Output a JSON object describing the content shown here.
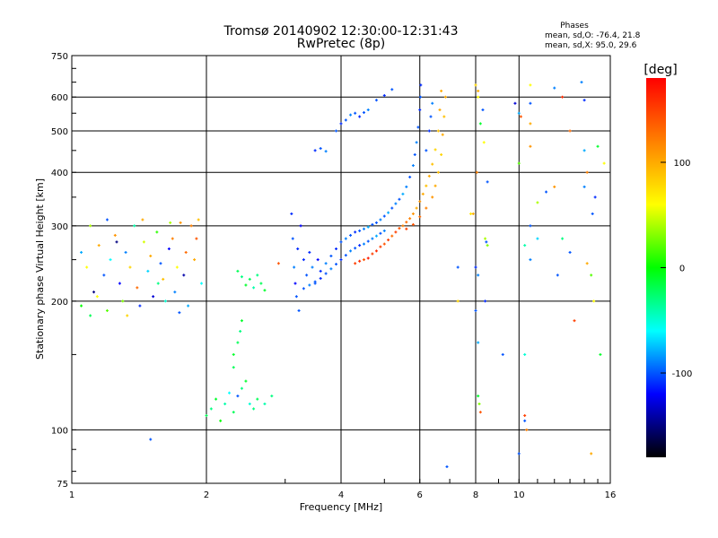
{
  "chart_data": {
    "type": "scatter",
    "title": "Tromsø 20140902 12:30:00-12:31:43",
    "subtitle": "RwPretec (8p)",
    "stats": {
      "title": "Phases",
      "line_o": "mean, sd,O: -76.4, 21.8",
      "line_x": "mean, sd,X:  95.0, 29.6"
    },
    "xlabel": "Frequency [MHz]",
    "ylabel": "Stationary phase Virtual Height [km]",
    "x_scale": "log",
    "y_scale": "log",
    "xlim": [
      1,
      16
    ],
    "ylim": [
      75,
      750
    ],
    "x_ticks": [
      1,
      2,
      4,
      6,
      8,
      10,
      16
    ],
    "x_ticklabels": [
      "1",
      "2",
      "4",
      "6",
      "8",
      "10",
      "16"
    ],
    "y_ticks": [
      75,
      100,
      200,
      300,
      400,
      500,
      600,
      750
    ],
    "y_ticklabels": [
      "75",
      "100",
      "200",
      "300",
      "400",
      "500",
      "600",
      "750"
    ],
    "grid": true,
    "colorbar": {
      "label": "[deg]",
      "min": -180,
      "max": 180,
      "ticks": [
        100,
        0,
        -100
      ],
      "ticklabels": [
        "100",
        "0",
        "-100"
      ],
      "colors": [
        "#ff0000",
        "#ff8000",
        "#ffff00",
        "#00ff00",
        "#00ffff",
        "#0000ff",
        "#000000"
      ]
    },
    "points": [
      [
        1.05,
        260,
        -80
      ],
      [
        1.08,
        240,
        60
      ],
      [
        1.1,
        300,
        40
      ],
      [
        1.12,
        210,
        -150
      ],
      [
        1.15,
        270,
        100
      ],
      [
        1.18,
        230,
        -100
      ],
      [
        1.2,
        190,
        20
      ],
      [
        1.22,
        250,
        -60
      ],
      [
        1.25,
        285,
        110
      ],
      [
        1.28,
        220,
        -120
      ],
      [
        1.3,
        200,
        30
      ],
      [
        1.32,
        260,
        -90
      ],
      [
        1.35,
        240,
        80
      ],
      [
        1.38,
        300,
        -40
      ],
      [
        1.4,
        215,
        130
      ],
      [
        1.42,
        195,
        -110
      ],
      [
        1.45,
        275,
        50
      ],
      [
        1.48,
        235,
        -70
      ],
      [
        1.5,
        255,
        100
      ],
      [
        1.52,
        205,
        -130
      ],
      [
        1.55,
        290,
        10
      ],
      [
        1.58,
        245,
        -100
      ],
      [
        1.6,
        225,
        90
      ],
      [
        1.62,
        200,
        -50
      ],
      [
        1.65,
        265,
        -120
      ],
      [
        1.68,
        280,
        120
      ],
      [
        1.7,
        210,
        -90
      ],
      [
        1.72,
        240,
        60
      ],
      [
        1.75,
        305,
        110
      ],
      [
        1.78,
        230,
        -140
      ],
      [
        1.8,
        260,
        130
      ],
      [
        1.82,
        195,
        -80
      ],
      [
        1.85,
        300,
        120
      ],
      [
        1.88,
        250,
        100
      ],
      [
        1.9,
        280,
        140
      ],
      [
        1.92,
        310,
        90
      ],
      [
        1.95,
        220,
        -60
      ],
      [
        1.05,
        195,
        0
      ],
      [
        1.1,
        185,
        -20
      ],
      [
        1.14,
        205,
        60
      ],
      [
        1.2,
        310,
        -100
      ],
      [
        1.26,
        275,
        -150
      ],
      [
        1.33,
        185,
        80
      ],
      [
        1.44,
        310,
        100
      ],
      [
        1.56,
        220,
        -30
      ],
      [
        1.66,
        305,
        40
      ],
      [
        1.74,
        188,
        -100
      ],
      [
        2.0,
        108,
        -20
      ],
      [
        2.05,
        112,
        -30
      ],
      [
        2.1,
        118,
        -10
      ],
      [
        2.15,
        105,
        0
      ],
      [
        2.2,
        115,
        -40
      ],
      [
        2.25,
        122,
        -60
      ],
      [
        2.3,
        110,
        -20
      ],
      [
        2.35,
        120,
        -100
      ],
      [
        2.4,
        125,
        -30
      ],
      [
        2.45,
        130,
        -10
      ],
      [
        2.5,
        115,
        -50
      ],
      [
        2.55,
        112,
        -30
      ],
      [
        2.6,
        118,
        -20
      ],
      [
        2.7,
        115,
        -40
      ],
      [
        2.8,
        120,
        -30
      ],
      [
        2.3,
        150,
        -10
      ],
      [
        2.35,
        160,
        -20
      ],
      [
        2.38,
        170,
        -30
      ],
      [
        2.4,
        180,
        -10
      ],
      [
        2.3,
        140,
        -20
      ],
      [
        2.35,
        235,
        -20
      ],
      [
        2.4,
        228,
        -30
      ],
      [
        2.45,
        218,
        -10
      ],
      [
        2.5,
        225,
        -20
      ],
      [
        2.55,
        215,
        -40
      ],
      [
        2.6,
        230,
        -30
      ],
      [
        2.65,
        220,
        -20
      ],
      [
        2.7,
        212,
        -10
      ],
      [
        1.5,
        95,
        -100
      ],
      [
        2.9,
        245,
        140
      ],
      [
        3.1,
        320,
        -110
      ],
      [
        3.12,
        280,
        -100
      ],
      [
        3.14,
        240,
        -90
      ],
      [
        3.16,
        220,
        -120
      ],
      [
        3.18,
        205,
        -100
      ],
      [
        3.2,
        265,
        -110
      ],
      [
        3.22,
        190,
        -100
      ],
      [
        3.25,
        300,
        -120
      ],
      [
        3.3,
        250,
        -110
      ],
      [
        3.35,
        230,
        -100
      ],
      [
        3.4,
        260,
        -110
      ],
      [
        3.45,
        240,
        -90
      ],
      [
        3.5,
        220,
        -100
      ],
      [
        3.55,
        250,
        -120
      ],
      [
        3.6,
        235,
        -110
      ],
      [
        3.7,
        245,
        -90
      ],
      [
        3.8,
        255,
        -100
      ],
      [
        3.9,
        265,
        -110
      ],
      [
        4.0,
        275,
        -100
      ],
      [
        4.1,
        280,
        -90
      ],
      [
        4.2,
        285,
        -100
      ],
      [
        4.3,
        290,
        -110
      ],
      [
        4.4,
        292,
        -100
      ],
      [
        4.5,
        295,
        -90
      ],
      [
        4.6,
        298,
        -80
      ],
      [
        4.7,
        302,
        -100
      ],
      [
        4.8,
        305,
        -100
      ],
      [
        4.9,
        310,
        -90
      ],
      [
        5.0,
        316,
        -100
      ],
      [
        5.1,
        322,
        -80
      ],
      [
        5.2,
        330,
        -100
      ],
      [
        5.3,
        338,
        -90
      ],
      [
        5.4,
        346,
        -100
      ],
      [
        5.5,
        356,
        -80
      ],
      [
        5.6,
        370,
        -90
      ],
      [
        5.7,
        390,
        -100
      ],
      [
        5.8,
        415,
        -90
      ],
      [
        5.85,
        440,
        -100
      ],
      [
        5.9,
        470,
        -90
      ],
      [
        5.95,
        510,
        -100
      ],
      [
        6.0,
        560,
        -110
      ],
      [
        6.02,
        600,
        -100
      ],
      [
        6.03,
        640,
        -110
      ],
      [
        3.3,
        214,
        -100
      ],
      [
        3.4,
        218,
        -90
      ],
      [
        3.5,
        222,
        -100
      ],
      [
        3.6,
        226,
        -110
      ],
      [
        3.7,
        232,
        -100
      ],
      [
        3.8,
        238,
        -90
      ],
      [
        3.9,
        244,
        -100
      ],
      [
        4.0,
        250,
        -110
      ],
      [
        4.1,
        256,
        -100
      ],
      [
        4.2,
        262,
        -90
      ],
      [
        4.3,
        266,
        -100
      ],
      [
        4.4,
        270,
        -110
      ],
      [
        4.5,
        272,
        -90
      ],
      [
        4.6,
        276,
        -100
      ],
      [
        4.7,
        280,
        -90
      ],
      [
        4.8,
        284,
        -80
      ],
      [
        4.9,
        288,
        -100
      ],
      [
        5.0,
        292,
        -90
      ],
      [
        3.5,
        450,
        -110
      ],
      [
        3.6,
        455,
        -100
      ],
      [
        3.7,
        448,
        -90
      ],
      [
        3.9,
        500,
        -100
      ],
      [
        4.0,
        520,
        -110
      ],
      [
        4.1,
        530,
        -100
      ],
      [
        4.2,
        545,
        -90
      ],
      [
        4.3,
        550,
        -100
      ],
      [
        4.4,
        540,
        -110
      ],
      [
        4.5,
        552,
        -100
      ],
      [
        4.6,
        560,
        -90
      ],
      [
        4.8,
        590,
        -100
      ],
      [
        5.0,
        605,
        -110
      ],
      [
        5.2,
        625,
        -100
      ],
      [
        4.3,
        245,
        150
      ],
      [
        4.4,
        248,
        160
      ],
      [
        4.5,
        250,
        140
      ],
      [
        4.6,
        252,
        170
      ],
      [
        4.7,
        258,
        150
      ],
      [
        4.8,
        262,
        160
      ],
      [
        4.9,
        268,
        150
      ],
      [
        5.0,
        272,
        140
      ],
      [
        5.1,
        278,
        150
      ],
      [
        5.2,
        284,
        130
      ],
      [
        5.3,
        290,
        150
      ],
      [
        5.4,
        296,
        140
      ],
      [
        5.5,
        300,
        120
      ],
      [
        5.6,
        306,
        130
      ],
      [
        5.7,
        312,
        120
      ],
      [
        5.8,
        320,
        110
      ],
      [
        5.9,
        330,
        100
      ],
      [
        6.0,
        342,
        110
      ],
      [
        6.1,
        356,
        100
      ],
      [
        6.2,
        372,
        90
      ],
      [
        6.3,
        392,
        100
      ],
      [
        6.4,
        418,
        90
      ],
      [
        6.5,
        452,
        80
      ],
      [
        6.6,
        500,
        90
      ],
      [
        6.65,
        560,
        100
      ],
      [
        6.7,
        620,
        100
      ],
      [
        5.6,
        295,
        150
      ],
      [
        5.8,
        302,
        140
      ],
      [
        6.0,
        315,
        130
      ],
      [
        6.2,
        330,
        120
      ],
      [
        6.4,
        350,
        110
      ],
      [
        6.5,
        372,
        100
      ],
      [
        6.6,
        400,
        90
      ],
      [
        6.7,
        440,
        80
      ],
      [
        6.75,
        490,
        100
      ],
      [
        6.8,
        540,
        90
      ],
      [
        6.85,
        600,
        100
      ],
      [
        6.3,
        500,
        -110
      ],
      [
        6.35,
        540,
        -100
      ],
      [
        6.4,
        580,
        -90
      ],
      [
        6.2,
        450,
        -100
      ],
      [
        7.8,
        320,
        70
      ],
      [
        7.9,
        320,
        100
      ],
      [
        8.0,
        190,
        -100
      ],
      [
        8.0,
        240,
        -110
      ],
      [
        8.1,
        230,
        -90
      ],
      [
        8.05,
        400,
        120
      ],
      [
        8.1,
        160,
        -80
      ],
      [
        8.1,
        120,
        -10
      ],
      [
        8.15,
        115,
        30
      ],
      [
        8.2,
        110,
        140
      ],
      [
        8.0,
        640,
        80
      ],
      [
        8.1,
        620,
        100
      ],
      [
        8.1,
        600,
        60
      ],
      [
        8.2,
        520,
        -10
      ],
      [
        8.3,
        560,
        -100
      ],
      [
        8.35,
        470,
        60
      ],
      [
        8.4,
        280,
        40
      ],
      [
        8.45,
        275,
        -100
      ],
      [
        8.4,
        200,
        -110
      ],
      [
        8.5,
        380,
        -100
      ],
      [
        8.5,
        270,
        30
      ],
      [
        7.3,
        240,
        -100
      ],
      [
        7.3,
        200,
        80
      ],
      [
        6.9,
        82,
        -100
      ],
      [
        9.2,
        150,
        -100
      ],
      [
        9.8,
        580,
        -130
      ],
      [
        10.0,
        550,
        -80
      ],
      [
        10.0,
        420,
        20
      ],
      [
        10.3,
        108,
        150
      ],
      [
        10.3,
        105,
        -100
      ],
      [
        10.4,
        100,
        120
      ],
      [
        10.6,
        580,
        -100
      ],
      [
        10.6,
        520,
        100
      ],
      [
        10.6,
        460,
        110
      ],
      [
        10.6,
        640,
        60
      ],
      [
        10.3,
        150,
        -50
      ],
      [
        10.0,
        88,
        -100
      ],
      [
        10.1,
        540,
        140
      ],
      [
        10.6,
        300,
        -100
      ],
      [
        10.6,
        250,
        -90
      ],
      [
        10.3,
        270,
        -40
      ],
      [
        11.0,
        280,
        -70
      ],
      [
        11.5,
        360,
        -100
      ],
      [
        12.0,
        370,
        110
      ],
      [
        12.5,
        280,
        -30
      ],
      [
        12.5,
        600,
        160
      ],
      [
        13.0,
        260,
        -100
      ],
      [
        13.0,
        500,
        130
      ],
      [
        13.3,
        180,
        150
      ],
      [
        14.0,
        370,
        -90
      ],
      [
        14.0,
        450,
        -80
      ],
      [
        14.2,
        400,
        120
      ],
      [
        14.2,
        245,
        100
      ],
      [
        14.0,
        590,
        -110
      ],
      [
        14.5,
        230,
        20
      ],
      [
        14.6,
        320,
        -100
      ],
      [
        14.7,
        200,
        60
      ],
      [
        15.0,
        460,
        -10
      ],
      [
        15.2,
        150,
        -10
      ],
      [
        14.5,
        88,
        100
      ],
      [
        14.8,
        350,
        -110
      ],
      [
        15.5,
        420,
        60
      ],
      [
        13.8,
        650,
        -90
      ],
      [
        11.0,
        340,
        40
      ],
      [
        12.2,
        230,
        -100
      ],
      [
        12.0,
        630,
        -90
      ]
    ]
  }
}
